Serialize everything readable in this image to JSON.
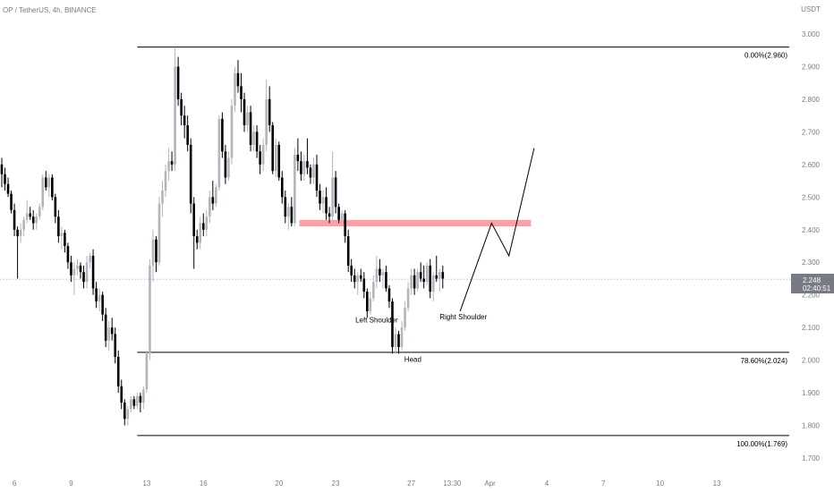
{
  "header": {
    "symbol": "OP / TetherUS, 4h, BINANCE",
    "currency": "USDT"
  },
  "colors": {
    "bull": "#b2b5be",
    "bear": "#000000",
    "zone": "#f5a3a8",
    "price_badge": "#787b86",
    "axis_text": "#787b86"
  },
  "price_badge": {
    "price": "2.248",
    "countdown": "02:40:51"
  },
  "chart_data": {
    "type": "candlestick",
    "y_ticks": [
      "3.000",
      "2.900",
      "2.800",
      "2.700",
      "2.600",
      "2.500",
      "2.400",
      "2.300",
      "2.200",
      "2.100",
      "2.000",
      "1.900",
      "1.800",
      "1.700"
    ],
    "ylim": [
      1.68,
      3.04
    ],
    "x_ticks": [
      {
        "label": "6",
        "bar": 4
      },
      {
        "label": "9",
        "bar": 22
      },
      {
        "label": "13",
        "bar": 46
      },
      {
        "label": "16",
        "bar": 64
      },
      {
        "label": "20",
        "bar": 88
      },
      {
        "label": "23",
        "bar": 106
      },
      {
        "label": "27",
        "bar": 130
      },
      {
        "label": "13:30",
        "bar": 143
      },
      {
        "label": "Apr",
        "bar": 155
      },
      {
        "label": "4",
        "bar": 173
      },
      {
        "label": "7",
        "bar": 191
      },
      {
        "label": "10",
        "bar": 209
      },
      {
        "label": "13",
        "bar": 227
      }
    ],
    "candles": [
      [
        2.6,
        2.62,
        2.53,
        2.57
      ],
      [
        2.57,
        2.59,
        2.52,
        2.54
      ],
      [
        2.54,
        2.56,
        2.5,
        2.51
      ],
      [
        2.51,
        2.52,
        2.45,
        2.46
      ],
      [
        2.46,
        2.48,
        2.38,
        2.4
      ],
      [
        2.4,
        2.41,
        2.25,
        2.38
      ],
      [
        2.38,
        2.42,
        2.36,
        2.4
      ],
      [
        2.4,
        2.44,
        2.38,
        2.43
      ],
      [
        2.43,
        2.49,
        2.42,
        2.45
      ],
      [
        2.45,
        2.47,
        2.43,
        2.44
      ],
      [
        2.44,
        2.46,
        2.4,
        2.42
      ],
      [
        2.42,
        2.45,
        2.4,
        2.44
      ],
      [
        2.44,
        2.48,
        2.43,
        2.47
      ],
      [
        2.47,
        2.57,
        2.46,
        2.56
      ],
      [
        2.56,
        2.58,
        2.52,
        2.53
      ],
      [
        2.53,
        2.57,
        2.5,
        2.56
      ],
      [
        2.56,
        2.57,
        2.49,
        2.5
      ],
      [
        2.5,
        2.51,
        2.42,
        2.44
      ],
      [
        2.44,
        2.46,
        2.36,
        2.38
      ],
      [
        2.38,
        2.41,
        2.34,
        2.39
      ],
      [
        2.39,
        2.4,
        2.33,
        2.35
      ],
      [
        2.35,
        2.36,
        2.28,
        2.3
      ],
      [
        2.3,
        2.32,
        2.24,
        2.26
      ],
      [
        2.26,
        2.3,
        2.2,
        2.28
      ],
      [
        2.28,
        2.31,
        2.26,
        2.29
      ],
      [
        2.29,
        2.3,
        2.25,
        2.27
      ],
      [
        2.27,
        2.29,
        2.22,
        2.24
      ],
      [
        2.24,
        2.32,
        2.22,
        2.3
      ],
      [
        2.3,
        2.33,
        2.28,
        2.32
      ],
      [
        2.32,
        2.34,
        2.2,
        2.22
      ],
      [
        2.22,
        2.24,
        2.16,
        2.18
      ],
      [
        2.18,
        2.22,
        2.15,
        2.2
      ],
      [
        2.2,
        2.21,
        2.12,
        2.14
      ],
      [
        2.14,
        2.16,
        2.04,
        2.06
      ],
      [
        2.06,
        2.12,
        2.03,
        2.1
      ],
      [
        2.1,
        2.13,
        2.06,
        2.08
      ],
      [
        2.08,
        2.1,
        1.99,
        2.01
      ],
      [
        2.01,
        2.03,
        1.9,
        1.92
      ],
      [
        1.92,
        1.94,
        1.85,
        1.87
      ],
      [
        1.87,
        1.88,
        1.8,
        1.82
      ],
      [
        1.82,
        1.86,
        1.8,
        1.85
      ],
      [
        1.85,
        1.89,
        1.84,
        1.88
      ],
      [
        1.88,
        1.89,
        1.85,
        1.86
      ],
      [
        1.86,
        1.9,
        1.85,
        1.89
      ],
      [
        1.89,
        1.9,
        1.84,
        1.87
      ],
      [
        1.87,
        1.92,
        1.85,
        1.91
      ],
      [
        1.91,
        2.03,
        1.9,
        2.02
      ],
      [
        2.02,
        2.31,
        2.0,
        2.29
      ],
      [
        2.29,
        2.4,
        2.24,
        2.37
      ],
      [
        2.37,
        2.38,
        2.27,
        2.3
      ],
      [
        2.3,
        2.5,
        2.29,
        2.48
      ],
      [
        2.48,
        2.55,
        2.44,
        2.52
      ],
      [
        2.52,
        2.6,
        2.5,
        2.58
      ],
      [
        2.58,
        2.65,
        2.55,
        2.61
      ],
      [
        2.61,
        2.64,
        2.58,
        2.6
      ],
      [
        2.6,
        2.96,
        2.58,
        2.9
      ],
      [
        2.9,
        2.93,
        2.78,
        2.8
      ],
      [
        2.8,
        2.82,
        2.72,
        2.75
      ],
      [
        2.75,
        2.78,
        2.68,
        2.72
      ],
      [
        2.72,
        2.75,
        2.64,
        2.66
      ],
      [
        2.66,
        2.68,
        2.45,
        2.48
      ],
      [
        2.48,
        2.5,
        2.28,
        2.38
      ],
      [
        2.38,
        2.4,
        2.34,
        2.36
      ],
      [
        2.36,
        2.44,
        2.34,
        2.42
      ],
      [
        2.42,
        2.45,
        2.38,
        2.4
      ],
      [
        2.4,
        2.46,
        2.38,
        2.44
      ],
      [
        2.44,
        2.52,
        2.42,
        2.5
      ],
      [
        2.5,
        2.55,
        2.46,
        2.48
      ],
      [
        2.48,
        2.54,
        2.47,
        2.53
      ],
      [
        2.53,
        2.75,
        2.52,
        2.74
      ],
      [
        2.74,
        2.76,
        2.62,
        2.64
      ],
      [
        2.64,
        2.66,
        2.54,
        2.56
      ],
      [
        2.56,
        2.64,
        2.55,
        2.62
      ],
      [
        2.62,
        2.8,
        2.6,
        2.78
      ],
      [
        2.78,
        2.9,
        2.76,
        2.88
      ],
      [
        2.88,
        2.92,
        2.82,
        2.84
      ],
      [
        2.84,
        2.88,
        2.76,
        2.8
      ],
      [
        2.8,
        2.82,
        2.7,
        2.72
      ],
      [
        2.72,
        2.78,
        2.7,
        2.76
      ],
      [
        2.76,
        2.78,
        2.64,
        2.66
      ],
      [
        2.66,
        2.72,
        2.64,
        2.7
      ],
      [
        2.7,
        2.72,
        2.62,
        2.64
      ],
      [
        2.64,
        2.66,
        2.57,
        2.6
      ],
      [
        2.6,
        2.68,
        2.58,
        2.66
      ],
      [
        2.66,
        2.86,
        2.64,
        2.8
      ],
      [
        2.8,
        2.84,
        2.7,
        2.72
      ],
      [
        2.72,
        2.73,
        2.57,
        2.58
      ],
      [
        2.58,
        2.68,
        2.56,
        2.66
      ],
      [
        2.66,
        2.67,
        2.55,
        2.56
      ],
      [
        2.56,
        2.58,
        2.48,
        2.5
      ],
      [
        2.5,
        2.52,
        2.42,
        2.44
      ],
      [
        2.44,
        2.48,
        2.4,
        2.47
      ],
      [
        2.47,
        2.5,
        2.41,
        2.42
      ],
      [
        2.42,
        2.65,
        2.41,
        2.63
      ],
      [
        2.63,
        2.68,
        2.58,
        2.61
      ],
      [
        2.61,
        2.64,
        2.55,
        2.57
      ],
      [
        2.57,
        2.63,
        2.55,
        2.61
      ],
      [
        2.61,
        2.68,
        2.57,
        2.59
      ],
      [
        2.59,
        2.6,
        2.54,
        2.56
      ],
      [
        2.56,
        2.62,
        2.54,
        2.6
      ],
      [
        2.6,
        2.63,
        2.5,
        2.52
      ],
      [
        2.52,
        2.54,
        2.46,
        2.48
      ],
      [
        2.48,
        2.52,
        2.45,
        2.5
      ],
      [
        2.5,
        2.53,
        2.43,
        2.45
      ],
      [
        2.45,
        2.47,
        2.42,
        2.44
      ],
      [
        2.44,
        2.64,
        2.43,
        2.56
      ],
      [
        2.56,
        2.58,
        2.45,
        2.47
      ],
      [
        2.47,
        2.48,
        2.42,
        2.43
      ],
      [
        2.43,
        2.46,
        2.42,
        2.45
      ],
      [
        2.45,
        2.46,
        2.36,
        2.38
      ],
      [
        2.38,
        2.4,
        2.27,
        2.29
      ],
      [
        2.29,
        2.31,
        2.24,
        2.26
      ],
      [
        2.26,
        2.28,
        2.22,
        2.24
      ],
      [
        2.24,
        2.27,
        2.2,
        2.26
      ],
      [
        2.26,
        2.28,
        2.24,
        2.25
      ],
      [
        2.25,
        2.27,
        2.19,
        2.21
      ],
      [
        2.21,
        2.22,
        2.13,
        2.15
      ],
      [
        2.15,
        2.21,
        2.14,
        2.19
      ],
      [
        2.19,
        2.26,
        2.18,
        2.24
      ],
      [
        2.24,
        2.32,
        2.22,
        2.28
      ],
      [
        2.28,
        2.31,
        2.24,
        2.26
      ],
      [
        2.26,
        2.28,
        2.22,
        2.27
      ],
      [
        2.27,
        2.29,
        2.21,
        2.22
      ],
      [
        2.22,
        2.23,
        2.16,
        2.18
      ],
      [
        2.18,
        2.19,
        2.02,
        2.04
      ],
      [
        2.04,
        2.1,
        2.02,
        2.08
      ],
      [
        2.08,
        2.09,
        2.02,
        2.04
      ],
      [
        2.04,
        2.12,
        2.03,
        2.1
      ],
      [
        2.1,
        2.18,
        2.09,
        2.16
      ],
      [
        2.16,
        2.24,
        2.15,
        2.22
      ],
      [
        2.22,
        2.28,
        2.2,
        2.26
      ],
      [
        2.26,
        2.28,
        2.2,
        2.22
      ],
      [
        2.22,
        2.28,
        2.21,
        2.27
      ],
      [
        2.27,
        2.3,
        2.24,
        2.25
      ],
      [
        2.25,
        2.29,
        2.22,
        2.24
      ],
      [
        2.24,
        2.3,
        2.23,
        2.29
      ],
      [
        2.29,
        2.31,
        2.19,
        2.21
      ],
      [
        2.21,
        2.27,
        2.18,
        2.26
      ],
      [
        2.26,
        2.32,
        2.24,
        2.25
      ],
      [
        2.25,
        2.28,
        2.21,
        2.27
      ],
      [
        2.27,
        2.29,
        2.22,
        2.25
      ]
    ],
    "fib_levels": [
      {
        "label": "0.00%(2.960)",
        "price": 2.96,
        "from_bar": 43
      },
      {
        "label": "78.60%(2.024)",
        "price": 2.024,
        "from_bar": 43
      },
      {
        "label": "100.00%(1.769)",
        "price": 1.769,
        "from_bar": 43
      }
    ],
    "zone": {
      "top": 2.43,
      "bottom": 2.41,
      "from_bar": 94.5,
      "to_bar": 168
    },
    "projection_path": [
      {
        "bar": 145.5,
        "price": 2.15
      },
      {
        "bar": 155.5,
        "price": 2.42
      },
      {
        "bar": 161,
        "price": 2.32
      },
      {
        "bar": 169,
        "price": 2.65
      }
    ],
    "current_price": 2.248,
    "annotations": [
      {
        "text": "Left Shoulder",
        "bar": 119,
        "price": 2.115
      },
      {
        "text": "Head",
        "bar": 130.5,
        "price": 1.995
      },
      {
        "text": "Right Shoulder",
        "bar": 146.5,
        "price": 2.125
      }
    ]
  }
}
